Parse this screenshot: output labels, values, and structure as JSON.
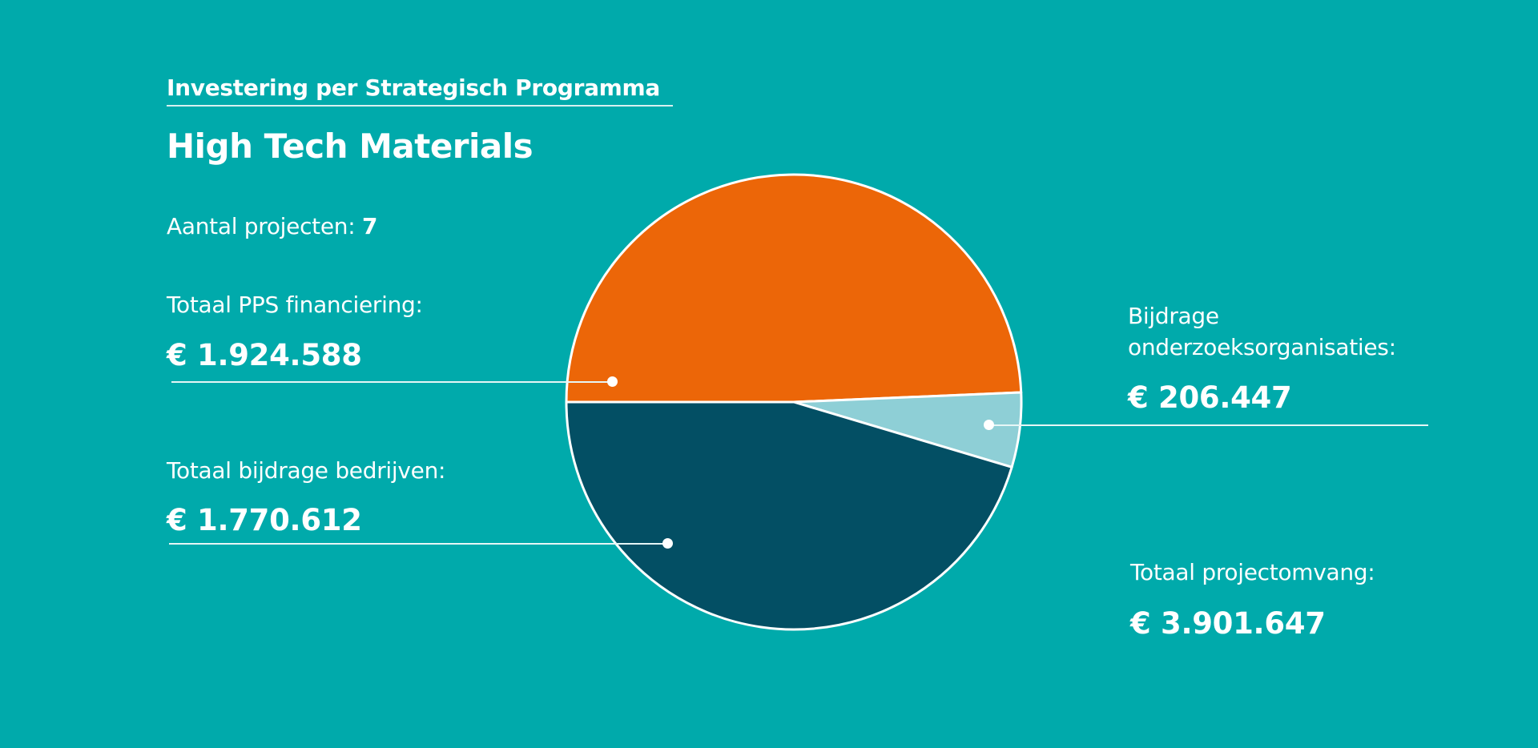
{
  "header": {
    "subtitle": "Investering per Strategisch Programma",
    "title": "High Tech Materials",
    "projects_label": "Aantal projecten:",
    "projects_count": "7"
  },
  "labels": {
    "pps_label": "Totaal PPS financiering:",
    "pps_value": "€ 1.924.588",
    "bedrijven_label": "Totaal bijdrage bedrijven:",
    "bedrijven_value": "€ 1.770.612",
    "onderzoek_label_1": "Bijdrage",
    "onderzoek_label_2": "onderzoeksorganisaties:",
    "onderzoek_value": "€ 206.447",
    "total_label": "Totaal projectomvang:",
    "total_value": "€ 3.901.647"
  },
  "chart_data": {
    "type": "pie",
    "title": "High Tech Materials",
    "categories": [
      "Totaal PPS financiering",
      "Bijdrage onderzoeksorganisaties",
      "Totaal bijdrage bedrijven"
    ],
    "values": [
      1924588,
      206447,
      1770612
    ],
    "total": 3901647,
    "colors": [
      "#ec6608",
      "#8ecfd6",
      "#034f64"
    ],
    "background": "#00aaab"
  }
}
